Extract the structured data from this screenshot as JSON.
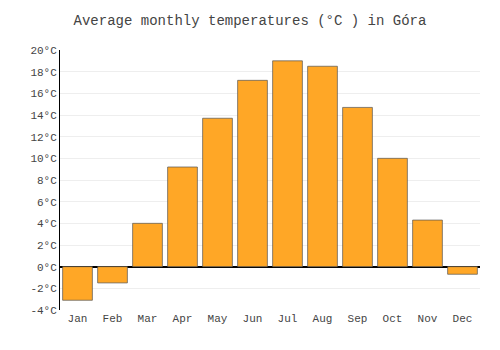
{
  "chart_data": {
    "type": "bar",
    "title": "Average monthly temperatures (°C ) in Góra",
    "categories": [
      "Jan",
      "Feb",
      "Mar",
      "Apr",
      "May",
      "Jun",
      "Jul",
      "Aug",
      "Sep",
      "Oct",
      "Nov",
      "Dec"
    ],
    "values": [
      -3.1,
      -1.5,
      4.0,
      9.2,
      13.7,
      17.2,
      19.0,
      18.5,
      14.7,
      10.0,
      4.3,
      -0.7
    ],
    "color": "#FFA726",
    "ylim": [
      -4,
      20
    ],
    "yticks": [
      {
        "value": -4,
        "label": "-4°C"
      },
      {
        "value": -2,
        "label": "-2°C"
      },
      {
        "value": 0,
        "label": "0°C"
      },
      {
        "value": 2,
        "label": "2°C"
      },
      {
        "value": 4,
        "label": "4°C"
      },
      {
        "value": 6,
        "label": "6°C"
      },
      {
        "value": 8,
        "label": "8°C"
      },
      {
        "value": 10,
        "label": "10°C"
      },
      {
        "value": 12,
        "label": "12°C"
      },
      {
        "value": 14,
        "label": "14°C"
      },
      {
        "value": 16,
        "label": "16°C"
      },
      {
        "value": 18,
        "label": "18°C"
      },
      {
        "value": 20,
        "label": "20°C"
      }
    ],
    "grid": true
  }
}
